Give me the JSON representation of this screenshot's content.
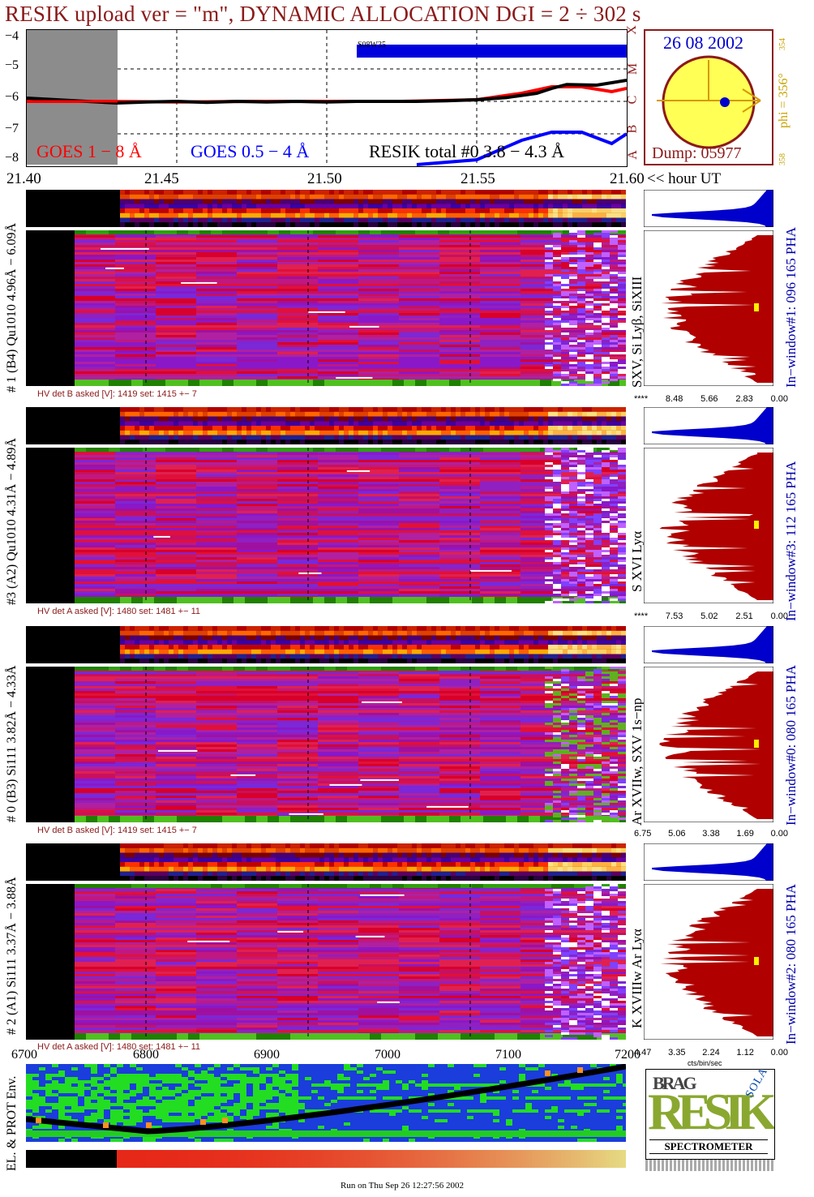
{
  "title": "RESIK upload ver = \"m\", DYNAMIC ALLOCATION  DGI =   2 ÷ 302 s",
  "colors": {
    "goes_long": "#ff0000",
    "goes_short": "#0000ff",
    "resik_total": "#000000",
    "title": "#8b1a1a",
    "sun": "#ffff55",
    "sun_rim": "#8b1a1a",
    "hist_fill": "#b00000",
    "hist_blue": "#0000cc",
    "phi": "#c8a000"
  },
  "lightcurve": {
    "y_ticks": [
      "−4",
      "−5",
      "−6",
      "−7",
      "−8"
    ],
    "class_letters": [
      "X",
      "M",
      "C",
      "B",
      "A"
    ],
    "legend": {
      "goes_long": "GOES 1 − 8 Å",
      "goes_short": "GOES 0.5 − 4 Å",
      "resik_total": "RESIK total #0  3.8 − 4.3 Å"
    },
    "saa_label": "S08W35"
  },
  "time_axis": {
    "tick_labels": [
      "21.40",
      "21.45",
      "21.50",
      "21.55",
      "21.60"
    ],
    "unit_label": "<< hour UT"
  },
  "sun_panel": {
    "date": "26 08 2002",
    "phi_label": "phi = 356°",
    "phi_small_top": "354",
    "phi_small_bottom": "358",
    "dump": "Dump: 05977"
  },
  "channels": [
    {
      "label": "# 1 (B4) Qu1010 4.96Å − 6.09Å",
      "lines": "SXV, Si Lyβ, SiXIII",
      "hv": "HV det B asked [V]:  1419 set:  1415  +−    7",
      "pha": "In−window#1:  096 165 PHA",
      "scale": [
        "****",
        "8.48",
        "5.66",
        "2.83",
        "0.00"
      ]
    },
    {
      "label": "#3 (A2) Qu1010  4.31Å − 4.89Å",
      "lines": "S XVI Lyα",
      "hv": "HV det A asked [V]:  1480 set:  1481  +−    11",
      "pha": "In−window#3:  112 165 PHA",
      "scale": [
        "****",
        "7.53",
        "5.02",
        "2.51",
        "0.00"
      ]
    },
    {
      "label": "# 0 (B3) Si111  3.82Å − 4.33Å",
      "lines": "Ar XVIIw,  SXV 1s−np",
      "hv": "HV det B asked [V]:  1419 set:  1415  +−    7",
      "pha": "In−window#0:  080 165 PHA",
      "scale": [
        "6.75",
        "5.06",
        "3.38",
        "1.69",
        "0.00"
      ]
    },
    {
      "label": "# 2 (A1) Si111  3.37Å − 3.88Å",
      "lines": "K XVIIIw  Ar Lyα",
      "hv": "HV det A asked [V]:  1480 set:  1481  +−    11",
      "pha": "In−window#2:  080 165 PHA",
      "scale": [
        "4.47",
        "3.35",
        "2.24",
        "1.12",
        "0.00"
      ],
      "scale_unit": "cts/bin/sec"
    }
  ],
  "env": {
    "label": "EL. & PROT Env.",
    "x_ticks": [
      "6700",
      "6800",
      "6900",
      "7000",
      "7100",
      "7200"
    ]
  },
  "logo": {
    "letters_top": "BRAG",
    "letters_mid": "RESIK",
    "letters_side": "SOLAR",
    "bottom": "SPECTROMETER"
  },
  "footer": "Run on Thu Sep 26 12:27:56 2002",
  "chart_data": {
    "type": "line",
    "title": "RESIK upload ver = \"m\", DYNAMIC ALLOCATION  DGI =   2 ÷ 302 s",
    "xlabel": "<< hour UT",
    "ylabel": "",
    "xlim": [
      21.4,
      21.6
    ],
    "ylim": [
      -8,
      -3.8
    ],
    "series": [
      {
        "name": "GOES 1 − 8 Å",
        "x": [
          21.4,
          21.425,
          21.45,
          21.475,
          21.5,
          21.525,
          21.55,
          21.565,
          21.575,
          21.585,
          21.595,
          21.6
        ],
        "y": [
          -6.0,
          -6.0,
          -6.02,
          -6.0,
          -6.0,
          -6.0,
          -5.95,
          -5.75,
          -5.55,
          -5.55,
          -5.7,
          -5.6
        ]
      },
      {
        "name": "GOES 0.5 − 4 Å",
        "x": [
          21.53,
          21.55,
          21.565,
          21.575,
          21.585,
          21.595,
          21.6
        ],
        "y": [
          -7.95,
          -7.8,
          -7.2,
          -6.95,
          -6.95,
          -7.3,
          -7.0
        ]
      },
      {
        "name": "RESIK total #0  3.8 − 4.3 Å",
        "x": [
          21.4,
          21.41,
          21.42,
          21.43,
          21.44,
          21.45,
          21.46,
          21.47,
          21.48,
          21.49,
          21.5,
          21.51,
          21.52,
          21.53,
          21.54,
          21.55,
          21.56,
          21.57,
          21.575,
          21.58,
          21.59,
          21.6
        ],
        "y": [
          -5.9,
          -5.95,
          -6.0,
          -6.05,
          -6.02,
          -6.0,
          -6.03,
          -6.0,
          -6.02,
          -6.0,
          -6.02,
          -6.0,
          -6.0,
          -6.0,
          -5.98,
          -5.95,
          -5.88,
          -5.75,
          -5.6,
          -5.48,
          -5.5,
          -5.35
        ]
      }
    ]
  }
}
